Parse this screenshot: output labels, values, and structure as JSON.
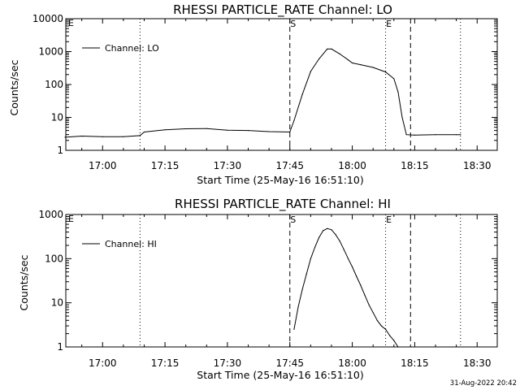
{
  "stamp": "31-Aug-2022 20:42",
  "chart_data": [
    {
      "type": "line",
      "title": "RHESSI PARTICLE_RATE Channel: LO",
      "xlabel": "Start Time (25-May-16 16:51:10)",
      "ylabel": "Counts/sec",
      "y_scale": "log",
      "ylim": [
        1,
        10000
      ],
      "xlim": [
        "16:51:10",
        "18:34:50"
      ],
      "x_ticks": [
        "17:00",
        "17:15",
        "17:30",
        "17:45",
        "18:00",
        "18:15",
        "18:30"
      ],
      "y_ticks": [
        "1",
        "10",
        "100",
        "1000",
        "10000"
      ],
      "legend": {
        "position": "top-left",
        "entries": [
          "Channel: LO"
        ]
      },
      "markers": {
        "S": "17:45",
        "E": "18:08"
      },
      "lines": [
        {
          "style": "dotted",
          "x": "17:09"
        },
        {
          "style": "dashed",
          "x": "17:45"
        },
        {
          "style": "dotted",
          "x": "18:08"
        },
        {
          "style": "dashed",
          "x": "18:14"
        },
        {
          "style": "dotted",
          "x": "18:26"
        }
      ],
      "series": [
        {
          "name": "Channel: LO",
          "x": [
            "16:51",
            "16:55",
            "17:00",
            "17:05",
            "17:09",
            "17:10",
            "17:15",
            "17:20",
            "17:25",
            "17:30",
            "17:35",
            "17:40",
            "17:45",
            "17:46",
            "17:48",
            "17:50",
            "17:52",
            "17:54",
            "17:55",
            "17:57",
            "17:59",
            "18:00",
            "18:02",
            "18:05",
            "18:08",
            "18:10",
            "18:11",
            "18:12",
            "18:13",
            "18:15",
            "18:20",
            "18:25",
            "18:26"
          ],
          "y": [
            2.5,
            2.7,
            2.6,
            2.6,
            2.8,
            3.6,
            4.2,
            4.5,
            4.6,
            4.1,
            4.0,
            3.7,
            3.6,
            8,
            50,
            250,
            600,
            1200,
            1200,
            850,
            560,
            450,
            400,
            330,
            240,
            150,
            60,
            10,
            3,
            2.9,
            3.0,
            3.0,
            3.0
          ]
        }
      ]
    },
    {
      "type": "line",
      "title": "RHESSI PARTICLE_RATE Channel: HI",
      "xlabel": "Start Time (25-May-16 16:51:10)",
      "ylabel": "Counts/sec",
      "y_scale": "log",
      "ylim": [
        1,
        1000
      ],
      "xlim": [
        "16:51:10",
        "18:34:50"
      ],
      "x_ticks": [
        "17:00",
        "17:15",
        "17:30",
        "17:45",
        "18:00",
        "18:15",
        "18:30"
      ],
      "y_ticks": [
        "1",
        "10",
        "100",
        "1000"
      ],
      "legend": {
        "position": "top-left",
        "entries": [
          "Channel: HI"
        ]
      },
      "markers": {
        "S": "17:45",
        "E": "18:08"
      },
      "lines": [
        {
          "style": "dotted",
          "x": "17:09"
        },
        {
          "style": "dashed",
          "x": "17:45"
        },
        {
          "style": "dotted",
          "x": "18:08"
        },
        {
          "style": "dashed",
          "x": "18:14"
        },
        {
          "style": "dotted",
          "x": "18:26"
        }
      ],
      "series": [
        {
          "name": "Channel: HI",
          "x": [
            "17:46",
            "17:47",
            "17:48",
            "17:49",
            "17:50",
            "17:51",
            "17:52",
            "17:53",
            "17:54",
            "17:55",
            "17:56",
            "17:57",
            "17:58",
            "17:59",
            "18:00",
            "18:01",
            "18:02",
            "18:03",
            "18:04",
            "18:05",
            "18:06",
            "18:07",
            "18:08",
            "18:09",
            "18:10",
            "18:11"
          ],
          "y": [
            2.5,
            8,
            20,
            45,
            100,
            180,
            300,
            430,
            480,
            450,
            350,
            250,
            160,
            100,
            65,
            40,
            25,
            15,
            9,
            6,
            4,
            3,
            2.5,
            1.8,
            1.4,
            1.0
          ]
        }
      ]
    }
  ]
}
